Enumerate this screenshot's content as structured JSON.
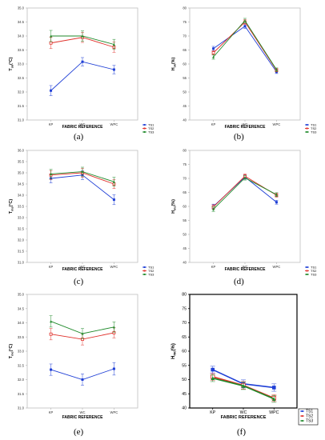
{
  "captions": [
    "(a)",
    "(b)",
    "(c)",
    "(d)",
    "(e)",
    "(f)"
  ],
  "colors": {
    "TS1": "#1f3fd6",
    "TS2": "#e0312b",
    "TS3": "#1f8a2a",
    "frame_light": "#bfbfbf",
    "frame_dark": "#000000",
    "axis_text": "#333333"
  },
  "chart_data": [
    {
      "type": "line",
      "title": "",
      "xlabel": "FABRIC REFERENCE",
      "ylabel": "Tsk(°C)",
      "ylabel_main": "T",
      "ylabel_sub": "sk",
      "ylabel_unit": "(°C)",
      "categories": [
        "KP",
        "WC",
        "WPC"
      ],
      "ylim": [
        31.0,
        35.0
      ],
      "yticks": [
        31.0,
        31.5,
        32.0,
        32.5,
        33.0,
        33.5,
        34.0,
        34.5,
        35.0
      ],
      "ytick_labels": [
        "31.0",
        "31.5",
        "32.0",
        "32.5",
        "33.0",
        "33.5",
        "34.0",
        "34.5",
        "35.0"
      ],
      "legend_position": "bottom-right",
      "series": [
        {
          "name": "TS1",
          "values": [
            32.05,
            33.08,
            32.8
          ],
          "errors": [
            0.18,
            0.15,
            0.15
          ]
        },
        {
          "name": "TS2",
          "values": [
            33.75,
            33.95,
            33.6
          ],
          "errors": [
            0.2,
            0.18,
            0.18
          ]
        },
        {
          "name": "TS3",
          "values": [
            34.0,
            34.0,
            33.7
          ],
          "errors": [
            0.2,
            0.18,
            0.18
          ]
        }
      ]
    },
    {
      "type": "line",
      "title": "",
      "xlabel": "FABRIC REFERENCE",
      "ylabel": "Hsk(%)",
      "ylabel_main": "H",
      "ylabel_sub": "sk",
      "ylabel_unit": "(%)",
      "categories": [
        "KP",
        "WC",
        "WPC"
      ],
      "ylim": [
        40,
        80
      ],
      "yticks": [
        40,
        45,
        50,
        55,
        60,
        65,
        70,
        75,
        80
      ],
      "ytick_labels": [
        "40",
        "45",
        "50",
        "55",
        "60",
        "65",
        "70",
        "75",
        "80"
      ],
      "legend_position": "bottom-right",
      "series": [
        {
          "name": "TS1",
          "values": [
            65.5,
            73.5,
            57.2
          ],
          "errors": [
            0.8,
            0.8,
            0.6
          ]
        },
        {
          "name": "TS2",
          "values": [
            64.0,
            75.0,
            57.8
          ],
          "errors": [
            0.8,
            0.8,
            0.6
          ]
        },
        {
          "name": "TS3",
          "values": [
            62.5,
            75.5,
            58.0
          ],
          "errors": [
            0.8,
            0.8,
            0.6
          ]
        }
      ]
    },
    {
      "type": "line",
      "title": "",
      "xlabel": "FABRIC REFERENCE",
      "ylabel": "Tms(°C)",
      "ylabel_main": "T",
      "ylabel_sub": "ms",
      "ylabel_unit": "(°C)",
      "categories": [
        "KP",
        "WC",
        "WPC"
      ],
      "ylim": [
        31.0,
        36.0
      ],
      "yticks": [
        31.0,
        31.5,
        32.0,
        32.5,
        33.0,
        33.5,
        34.0,
        34.5,
        35.0,
        35.5,
        36.0
      ],
      "ytick_labels": [
        "31.0",
        "31.5",
        "32.0",
        "32.5",
        "33.0",
        "33.5",
        "34.0",
        "34.5",
        "35.0",
        "35.5",
        "36.0"
      ],
      "legend_position": "bottom-right",
      "series": [
        {
          "name": "TS1",
          "values": [
            34.75,
            34.9,
            33.8
          ],
          "errors": [
            0.2,
            0.2,
            0.22
          ]
        },
        {
          "name": "TS2",
          "values": [
            34.9,
            35.0,
            34.5
          ],
          "errors": [
            0.2,
            0.2,
            0.2
          ]
        },
        {
          "name": "TS3",
          "values": [
            34.95,
            35.05,
            34.6
          ],
          "errors": [
            0.2,
            0.2,
            0.2
          ]
        }
      ]
    },
    {
      "type": "line",
      "title": "",
      "xlabel": "FABRIC REFERENCE",
      "ylabel": "Hms(%)",
      "ylabel_main": "H",
      "ylabel_sub": "ms",
      "ylabel_unit": "(%)",
      "categories": [
        "KP",
        "WC",
        "WPC"
      ],
      "ylim": [
        40,
        80
      ],
      "yticks": [
        40,
        45,
        50,
        55,
        60,
        65,
        70,
        75,
        80
      ],
      "ytick_labels": [
        "40",
        "45",
        "50",
        "55",
        "60",
        "65",
        "70",
        "75",
        "80"
      ],
      "legend_position": "bottom-right",
      "series": [
        {
          "name": "TS1",
          "values": [
            60.0,
            70.5,
            61.5
          ],
          "errors": [
            0.8,
            0.8,
            0.7
          ]
        },
        {
          "name": "TS2",
          "values": [
            59.8,
            70.8,
            64.0
          ],
          "errors": [
            0.8,
            0.8,
            0.7
          ]
        },
        {
          "name": "TS3",
          "values": [
            59.0,
            70.2,
            64.2
          ],
          "errors": [
            0.8,
            0.8,
            0.7
          ]
        }
      ]
    },
    {
      "type": "line",
      "title": "",
      "xlabel": "FABRIC REFERENCE",
      "ylabel": "Tmc(°C)",
      "ylabel_main": "T",
      "ylabel_sub": "mc",
      "ylabel_unit": "(°C)",
      "categories": [
        "KP",
        "WC",
        "WPC"
      ],
      "ylim": [
        31.0,
        35.0
      ],
      "yticks": [
        31.0,
        31.5,
        32.0,
        32.5,
        33.0,
        33.5,
        34.0,
        34.5,
        35.0
      ],
      "ytick_labels": [
        "31.0",
        "31.5",
        "32.0",
        "32.5",
        "33.0",
        "33.5",
        "34.0",
        "34.5",
        "35.0"
      ],
      "legend_position": "none",
      "series": [
        {
          "name": "TS1",
          "values": [
            32.35,
            32.0,
            32.38
          ],
          "errors": [
            0.2,
            0.2,
            0.22
          ]
        },
        {
          "name": "TS2",
          "values": [
            33.6,
            33.42,
            33.65
          ],
          "errors": [
            0.2,
            0.2,
            0.18
          ]
        },
        {
          "name": "TS3",
          "values": [
            34.05,
            33.62,
            33.85
          ],
          "errors": [
            0.2,
            0.18,
            0.18
          ]
        }
      ]
    },
    {
      "type": "line",
      "title": "",
      "xlabel": "FABRIC REFERENCE",
      "ylabel": "Hmc(%)",
      "ylabel_main": "H",
      "ylabel_sub": "mc",
      "ylabel_unit": "(%)",
      "categories": [
        "KP",
        "WC",
        "WPC"
      ],
      "ylim": [
        40,
        80
      ],
      "yticks": [
        40,
        45,
        50,
        55,
        60,
        65,
        70,
        75,
        80
      ],
      "ytick_labels": [
        "40",
        "45",
        "50",
        "55",
        "60",
        "65",
        "70",
        "75",
        "80"
      ],
      "legend_position": "bottom-right",
      "series": [
        {
          "name": "TS1",
          "values": [
            53.5,
            48.5,
            47.2
          ],
          "errors": [
            1.2,
            1.4,
            1.3
          ]
        },
        {
          "name": "TS2",
          "values": [
            51.0,
            48.0,
            43.5
          ],
          "errors": [
            1.2,
            1.3,
            1.2
          ]
        },
        {
          "name": "TS3",
          "values": [
            50.5,
            47.8,
            43.2
          ],
          "errors": [
            1.2,
            1.3,
            1.2
          ]
        }
      ]
    }
  ]
}
